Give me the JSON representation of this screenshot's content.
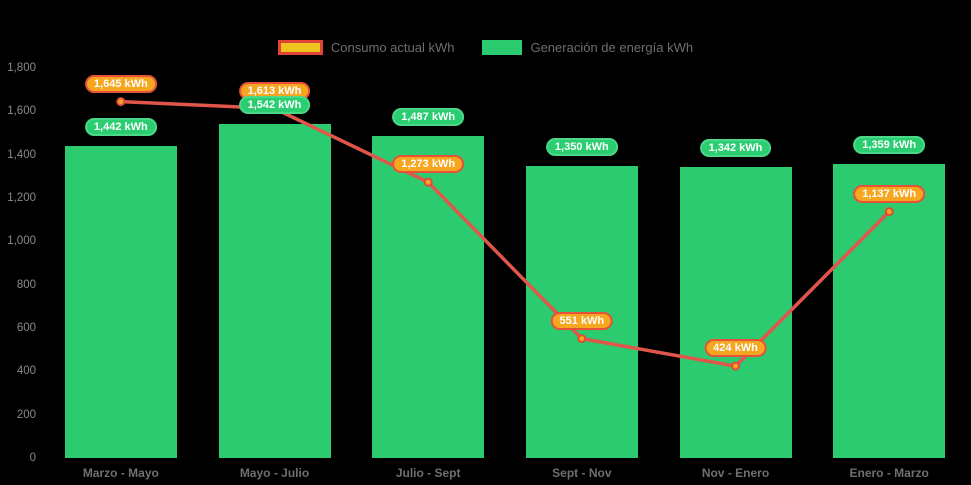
{
  "chart_data": {
    "type": "combo-bar-line",
    "title": "",
    "categories": [
      "Marzo - Mayo",
      "Mayo - Julio",
      "Julio - Sept",
      "Sept - Nov",
      "Nov - Enero",
      "Enero - Marzo"
    ],
    "series": [
      {
        "name": "Consumo actual kWh",
        "type": "line",
        "values": [
          1645,
          1613,
          1273,
          551,
          424,
          1137
        ]
      },
      {
        "name": "Generación de energía kWh",
        "type": "bar",
        "values": [
          1442,
          1542,
          1487,
          1350,
          1342,
          1359
        ]
      }
    ],
    "value_suffix": " kWh",
    "data_labels": [
      "1,645 kWh",
      "1,613 kWh",
      "1,273 kWh",
      "551 kWh",
      "424 kWh",
      "1,137 kWh",
      "1,442 kWh",
      "1,542 kWh",
      "1,487 kWh",
      "1,350 kWh",
      "1,342 kWh",
      "1,359 kWh"
    ],
    "y_axis": {
      "min": 0,
      "max": 1800,
      "tick_step": 200,
      "tick_labels": [
        "0",
        "200",
        "400",
        "600",
        "800",
        "1,000",
        "1,200",
        "1,400",
        "1,600",
        "1,800"
      ]
    },
    "grid": false,
    "legend_position": "top-center"
  },
  "legend": {
    "consumo_label": "Consumo actual kWh",
    "generacion_label": "Generación de energía kWh"
  },
  "colors": {
    "background": "#000000",
    "bar_fill": "#2dcb70",
    "bar_badge_fill": "#2bcd71",
    "bar_badge_border": "#4bd989",
    "line_stroke": "#e0564b",
    "point_fill": "#f6a61f",
    "point_stroke": "#df4b3c",
    "line_badge_fill": "#f6a61f",
    "line_badge_border": "#e7503a",
    "legend_consumo_fill": "#f0c41f",
    "legend_consumo_border": "#e04437",
    "axis_text": "#8a8a8a",
    "category_text": "#6f6f6f",
    "legend_text": "#6e6e6e",
    "badge_text": "#ffffff"
  }
}
